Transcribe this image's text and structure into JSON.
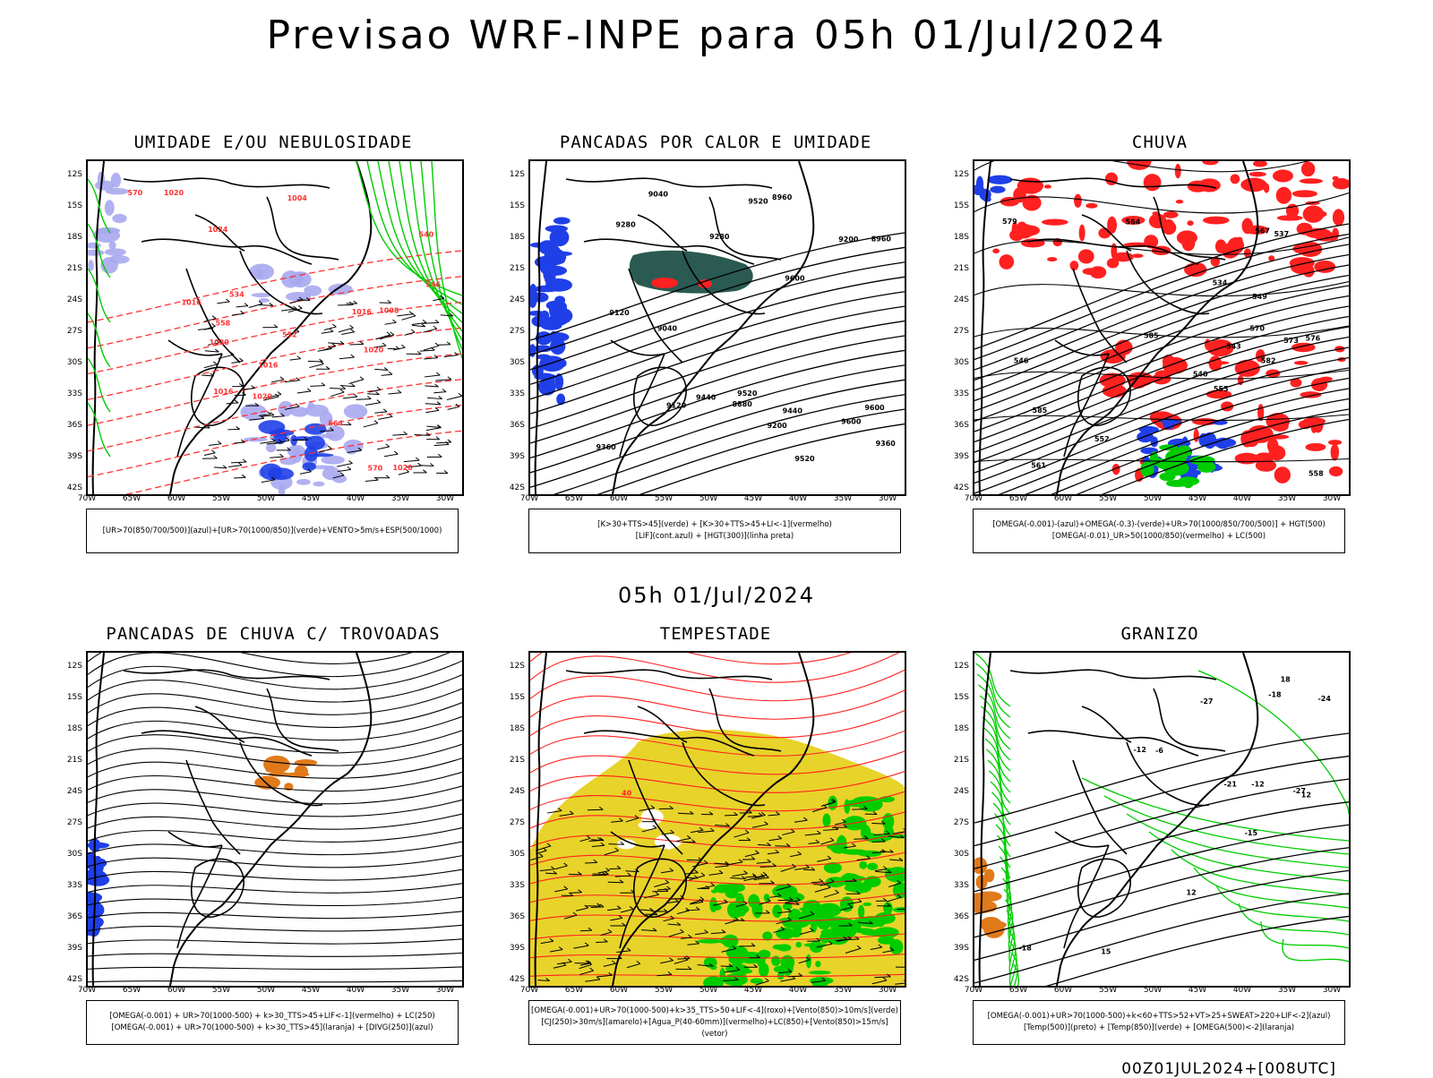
{
  "header": {
    "title": "Previsao WRF-INPE  para 05h 01/Jul/2024",
    "mid_stamp": "05h 01/Jul/2024",
    "run_stamp": "00Z01JUL2024+[008UTC]"
  },
  "axes": {
    "lat_labels": [
      "12S",
      "15S",
      "18S",
      "21S",
      "24S",
      "27S",
      "30S",
      "33S",
      "36S",
      "39S",
      "42S"
    ],
    "lon_labels": [
      "70W",
      "65W",
      "60W",
      "55W",
      "50W",
      "45W",
      "40W",
      "35W",
      "30W"
    ]
  },
  "colors": {
    "blue": "#1f3fe8",
    "lightblue": "#a9a9f0",
    "green": "#00cc00",
    "red": "#ff2020",
    "dashred": "#ff3030",
    "teal": "#2a5a52",
    "yellow": "#e8d32a",
    "orange": "#e07a1a"
  },
  "panels": [
    {
      "title": "UMIDADE E/OU NEBULOSIDADE",
      "caption": [
        "[UR>70(850/700/500)](azul)+[UR>70(1000/850)](verde)+VENTO>5m/s+ESP(500/1000)"
      ],
      "contour_labels": [
        "1016",
        "1016",
        "1020",
        "1020",
        "1020",
        "1024",
        "1020",
        "1020",
        "1016",
        "1016",
        "1008",
        "1004",
        "570",
        "570",
        "558",
        "564",
        "552",
        "546",
        "540",
        "534"
      ]
    },
    {
      "title": "PANCADAS POR CALOR E UMIDADE",
      "caption": [
        "[K>30+TTS>45](verde) + [K>30+TTS>45+LI<-1](vermelho)",
        "[LIF](cont.azul) + [HGT(300)](linha preta)"
      ],
      "contour_labels": [
        "9600",
        "9600",
        "9520",
        "9520",
        "9440",
        "9600",
        "9520",
        "9360",
        "9280",
        "9200",
        "9120",
        "9040",
        "8960",
        "8880",
        "9440",
        "9360",
        "9280",
        "9200",
        "9120",
        "9040",
        "8960"
      ]
    },
    {
      "title": "CHUVA",
      "caption": [
        "[OMEGA(-0.001)-(azul)+OMEGA(-0.3)-(verde)+UR>70(1000/850/700/500)] + HGT(500)",
        "[OMEGA(-0.01)_UR>50(1000/850)(vermelho) + LC(500)"
      ],
      "contour_labels": [
        "585",
        "585",
        "582",
        "579",
        "576",
        "573",
        "570",
        "567",
        "564",
        "561",
        "558",
        "555",
        "552",
        "549",
        "546",
        "543",
        "540",
        "537",
        "534"
      ]
    },
    {
      "title": "PANCADAS DE CHUVA C/ TROVOADAS",
      "caption": [
        "[OMEGA(-0.001) + UR>70(1000-500) + k>30_TTS>45+LIF<-1](vermelho) + LC(250)",
        "[OMEGA(-0.001) + UR>70(1000-500) + k>30_TTS>45](laranja) + [DIVG(250)](azul)"
      ],
      "contour_labels": []
    },
    {
      "title": "TEMPESTADE",
      "caption": [
        "[OMEGA(-0.001)+UR>70(1000-500)+k>35_TTS>50+LIF<-4](roxo)+[Vento(850)>10m/s](verde)",
        "[CJ(250)>30m/s](amarelo)+[Agua_P(40-60mm)](vermelho)+LC(850)+[Vento(850)>15m/s](vetor)"
      ],
      "contour_labels": [
        "40"
      ]
    },
    {
      "title": "GRANIZO",
      "caption": [
        "[OMEGA(-0.001)+UR>70(1000-500)+k<60+TTS>52+VT>25+SWEAT>220+LIF<-2](azul)",
        "[Temp(500)](preto) + [Temp(850)](verde) + [OMEGA(500)<-2](laranja)"
      ],
      "contour_labels": [
        "-6",
        "-12",
        "-12",
        "-15",
        "-18",
        "-18",
        "-21",
        "-24",
        "-27",
        "-27",
        "12",
        "15",
        "18",
        "12"
      ]
    }
  ]
}
